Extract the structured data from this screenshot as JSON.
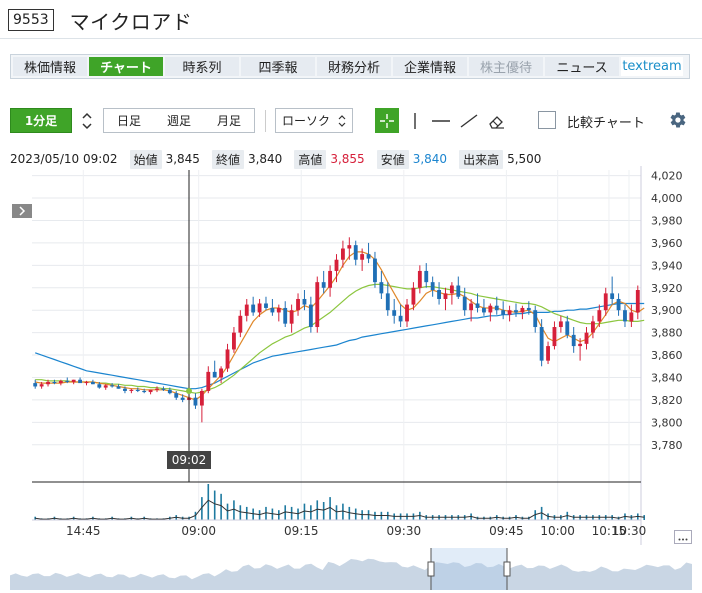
{
  "header": {
    "code": "9553",
    "name": "マイクロアド"
  },
  "tabs": [
    {
      "label": "株価情報",
      "state": "normal"
    },
    {
      "label": "チャート",
      "state": "active"
    },
    {
      "label": "時系列",
      "state": "normal"
    },
    {
      "label": "四季報",
      "state": "normal"
    },
    {
      "label": "財務分析",
      "state": "normal"
    },
    {
      "label": "企業情報",
      "state": "normal"
    },
    {
      "label": "株主優待",
      "state": "disabled"
    },
    {
      "label": "ニュース",
      "state": "normal"
    },
    {
      "label": "textream",
      "state": "ext"
    }
  ],
  "toolbar": {
    "interval": "1分足",
    "periods": [
      "日足",
      "週足",
      "月足"
    ],
    "chart_type": "ローソク",
    "compare_label": "比較チャート",
    "tools": [
      "crosshair-icon",
      "vertical-line-icon",
      "horizontal-line-icon",
      "trend-line-icon",
      "eraser-icon"
    ],
    "settings_icon": "gear-icon"
  },
  "info": {
    "datetime": "2023/05/10 09:02",
    "open_label": "始値",
    "open": "3,845",
    "close_label": "終値",
    "close": "3,840",
    "high_label": "高値",
    "high": "3,855",
    "low_label": "安値",
    "low": "3,840",
    "volume_label": "出来高",
    "volume": "5,500"
  },
  "colors": {
    "accent": "#3fa428",
    "up": "#d6203a",
    "down": "#1f6fb5",
    "ma_short": "#e0882a",
    "ma_mid": "#8cc63f",
    "ma_long": "#1c85cf",
    "high": "#d6203a",
    "low": "#1c85cf"
  },
  "chart_data": {
    "type": "candlestick",
    "y_ticks": [
      "4,020",
      "4,000",
      "3,980",
      "3,960",
      "3,940",
      "3,920",
      "3,900",
      "3,880",
      "3,860",
      "3,840",
      "3,820",
      "3,800",
      "3,780"
    ],
    "ylim": [
      3770,
      4025
    ],
    "x_ticks": [
      "14:45",
      "09:00",
      "09:15",
      "09:30",
      "09:45",
      "10:00",
      "10:15",
      "10:30"
    ],
    "crosshair_label": "09:02",
    "expand_icon": "chevron-right-icon",
    "candles": [
      [
        3835,
        3838,
        3830,
        3832
      ],
      [
        3832,
        3836,
        3830,
        3834
      ],
      [
        3834,
        3838,
        3832,
        3836
      ],
      [
        3836,
        3838,
        3834,
        3835
      ],
      [
        3835,
        3838,
        3833,
        3837
      ],
      [
        3837,
        3840,
        3835,
        3836
      ],
      [
        3836,
        3838,
        3834,
        3838
      ],
      [
        3838,
        3840,
        3836,
        3835
      ],
      [
        3835,
        3837,
        3833,
        3836
      ],
      [
        3836,
        3838,
        3834,
        3834
      ],
      [
        3834,
        3836,
        3830,
        3831
      ],
      [
        3831,
        3834,
        3829,
        3833
      ],
      [
        3833,
        3835,
        3831,
        3832
      ],
      [
        3832,
        3834,
        3830,
        3830
      ],
      [
        3830,
        3832,
        3826,
        3828
      ],
      [
        3828,
        3830,
        3826,
        3829
      ],
      [
        3829,
        3831,
        3827,
        3828
      ],
      [
        3828,
        3830,
        3826,
        3827
      ],
      [
        3827,
        3829,
        3825,
        3829
      ],
      [
        3829,
        3832,
        3827,
        3830
      ],
      [
        3830,
        3832,
        3828,
        3829
      ],
      [
        3829,
        3831,
        3825,
        3826
      ],
      [
        3826,
        3828,
        3820,
        3822
      ],
      [
        3822,
        3825,
        3818,
        3820
      ],
      [
        3820,
        3824,
        3816,
        3822
      ],
      [
        3822,
        3826,
        3812,
        3815
      ],
      [
        3815,
        3830,
        3800,
        3828
      ],
      [
        3828,
        3850,
        3826,
        3845
      ],
      [
        3845,
        3855,
        3840,
        3840
      ],
      [
        3840,
        3850,
        3835,
        3848
      ],
      [
        3848,
        3870,
        3845,
        3865
      ],
      [
        3865,
        3885,
        3862,
        3880
      ],
      [
        3880,
        3900,
        3876,
        3895
      ],
      [
        3895,
        3910,
        3890,
        3905
      ],
      [
        3905,
        3912,
        3895,
        3898
      ],
      [
        3898,
        3910,
        3894,
        3906
      ],
      [
        3906,
        3912,
        3900,
        3902
      ],
      [
        3902,
        3910,
        3895,
        3898
      ],
      [
        3898,
        3905,
        3890,
        3902
      ],
      [
        3902,
        3908,
        3885,
        3888
      ],
      [
        3888,
        3905,
        3880,
        3900
      ],
      [
        3900,
        3915,
        3895,
        3910
      ],
      [
        3910,
        3918,
        3900,
        3905
      ],
      [
        3905,
        3912,
        3880,
        3885
      ],
      [
        3885,
        3930,
        3880,
        3925
      ],
      [
        3925,
        3935,
        3915,
        3920
      ],
      [
        3920,
        3940,
        3912,
        3935
      ],
      [
        3935,
        3950,
        3925,
        3945
      ],
      [
        3945,
        3962,
        3938,
        3955
      ],
      [
        3955,
        3965,
        3945,
        3958
      ],
      [
        3958,
        3962,
        3940,
        3945
      ],
      [
        3945,
        3955,
        3935,
        3950
      ],
      [
        3950,
        3960,
        3942,
        3946
      ],
      [
        3946,
        3952,
        3920,
        3925
      ],
      [
        3925,
        3935,
        3910,
        3915
      ],
      [
        3915,
        3925,
        3895,
        3900
      ],
      [
        3900,
        3910,
        3888,
        3895
      ],
      [
        3895,
        3905,
        3885,
        3890
      ],
      [
        3890,
        3910,
        3885,
        3905
      ],
      [
        3905,
        3925,
        3900,
        3920
      ],
      [
        3920,
        3940,
        3915,
        3935
      ],
      [
        3935,
        3942,
        3920,
        3925
      ],
      [
        3925,
        3930,
        3912,
        3918
      ],
      [
        3918,
        3925,
        3905,
        3910
      ],
      [
        3910,
        3920,
        3900,
        3915
      ],
      [
        3915,
        3925,
        3905,
        3922
      ],
      [
        3922,
        3930,
        3910,
        3912
      ],
      [
        3912,
        3920,
        3895,
        3900
      ],
      [
        3900,
        3910,
        3890,
        3906
      ],
      [
        3906,
        3915,
        3898,
        3902
      ],
      [
        3902,
        3910,
        3895,
        3898
      ],
      [
        3898,
        3906,
        3890,
        3904
      ],
      [
        3904,
        3912,
        3896,
        3900
      ],
      [
        3900,
        3908,
        3892,
        3896
      ],
      [
        3896,
        3904,
        3890,
        3900
      ],
      [
        3900,
        3906,
        3894,
        3898
      ],
      [
        3898,
        3904,
        3892,
        3902
      ],
      [
        3902,
        3908,
        3896,
        3900
      ],
      [
        3900,
        3904,
        3880,
        3885
      ],
      [
        3885,
        3892,
        3850,
        3855
      ],
      [
        3855,
        3872,
        3852,
        3868
      ],
      [
        3868,
        3890,
        3865,
        3885
      ],
      [
        3885,
        3895,
        3880,
        3890
      ],
      [
        3890,
        3895,
        3875,
        3878
      ],
      [
        3878,
        3885,
        3862,
        3868
      ],
      [
        3868,
        3875,
        3855,
        3870
      ],
      [
        3870,
        3885,
        3865,
        3880
      ],
      [
        3880,
        3895,
        3875,
        3890
      ],
      [
        3890,
        3905,
        3885,
        3900
      ],
      [
        3900,
        3920,
        3895,
        3915
      ],
      [
        3915,
        3930,
        3905,
        3910
      ],
      [
        3910,
        3915,
        3895,
        3900
      ],
      [
        3900,
        3905,
        3885,
        3890
      ],
      [
        3890,
        3905,
        3885,
        3898
      ],
      [
        3898,
        3922,
        3892,
        3918
      ]
    ],
    "volume": [
      2,
      1,
      1,
      2,
      1,
      1,
      2,
      1,
      1,
      2,
      1,
      1,
      2,
      1,
      1,
      2,
      1,
      2,
      1,
      1,
      1,
      2,
      3,
      2,
      2,
      5,
      14,
      22,
      18,
      16,
      10,
      12,
      9,
      8,
      7,
      6,
      8,
      7,
      6,
      9,
      8,
      7,
      10,
      9,
      12,
      11,
      14,
      9,
      10,
      8,
      7,
      6,
      6,
      5,
      5,
      5,
      4,
      4,
      4,
      4,
      5,
      3,
      3,
      3,
      3,
      3,
      3,
      3,
      4,
      2,
      2,
      2,
      3,
      2,
      2,
      3,
      2,
      2,
      6,
      8,
      4,
      3,
      3,
      5,
      3,
      3,
      3,
      3,
      3,
      3,
      3,
      2,
      4,
      3,
      4,
      3
    ],
    "ma_short": [
      3836,
      3835,
      3835,
      3835,
      3835,
      3836,
      3836,
      3836,
      3836,
      3836,
      3835,
      3834,
      3833,
      3832,
      3831,
      3830,
      3830,
      3829,
      3829,
      3829,
      3829,
      3828,
      3826,
      3824,
      3822,
      3820,
      3824,
      3830,
      3836,
      3842,
      3850,
      3860,
      3870,
      3880,
      3890,
      3896,
      3900,
      3902,
      3902,
      3900,
      3898,
      3900,
      3904,
      3902,
      3908,
      3915,
      3922,
      3930,
      3940,
      3948,
      3952,
      3952,
      3950,
      3945,
      3936,
      3925,
      3915,
      3905,
      3900,
      3902,
      3908,
      3915,
      3918,
      3916,
      3914,
      3914,
      3915,
      3912,
      3908,
      3904,
      3902,
      3902,
      3902,
      3900,
      3899,
      3898,
      3899,
      3900,
      3896,
      3885,
      3875,
      3872,
      3875,
      3878,
      3875,
      3872,
      3874,
      3880,
      3888,
      3896,
      3905,
      3908,
      3906,
      3900,
      3898,
      3902
    ],
    "ma_mid": [
      3838,
      3838,
      3837,
      3837,
      3837,
      3837,
      3836,
      3836,
      3836,
      3836,
      3835,
      3835,
      3834,
      3834,
      3833,
      3833,
      3832,
      3832,
      3831,
      3831,
      3830,
      3830,
      3829,
      3828,
      3827,
      3826,
      3827,
      3829,
      3831,
      3834,
      3838,
      3842,
      3847,
      3852,
      3857,
      3862,
      3866,
      3870,
      3873,
      3876,
      3878,
      3881,
      3884,
      3886,
      3890,
      3894,
      3898,
      3903,
      3908,
      3913,
      3917,
      3920,
      3922,
      3923,
      3923,
      3922,
      3921,
      3920,
      3919,
      3919,
      3920,
      3921,
      3921,
      3920,
      3919,
      3918,
      3917,
      3916,
      3915,
      3913,
      3912,
      3911,
      3910,
      3909,
      3908,
      3907,
      3906,
      3906,
      3905,
      3903,
      3900,
      3897,
      3895,
      3893,
      3891,
      3889,
      3888,
      3888,
      3888,
      3889,
      3890,
      3891,
      3891,
      3890,
      3890,
      3891
    ],
    "ma_long": [
      3862,
      3860,
      3858,
      3856,
      3854,
      3852,
      3850,
      3848,
      3846,
      3845,
      3844,
      3843,
      3842,
      3841,
      3840,
      3839,
      3838,
      3837,
      3836,
      3835,
      3834,
      3833,
      3832,
      3831,
      3830,
      3830,
      3831,
      3833,
      3835,
      3838,
      3841,
      3844,
      3847,
      3850,
      3853,
      3855,
      3857,
      3859,
      3860,
      3861,
      3862,
      3863,
      3864,
      3865,
      3866,
      3867,
      3868,
      3869,
      3871,
      3873,
      3874,
      3876,
      3877,
      3878,
      3879,
      3880,
      3881,
      3882,
      3883,
      3884,
      3885,
      3886,
      3887,
      3888,
      3889,
      3890,
      3891,
      3892,
      3893,
      3893,
      3894,
      3895,
      3895,
      3896,
      3896,
      3897,
      3897,
      3898,
      3898,
      3898,
      3898,
      3899,
      3899,
      3900,
      3900,
      3901,
      3901,
      3902,
      3903,
      3904,
      3905,
      3906,
      3906,
      3906,
      3906,
      3906
    ]
  },
  "navigator": {
    "handle_icon": "range-handle-icon",
    "expand_icon": "expand-icon"
  }
}
